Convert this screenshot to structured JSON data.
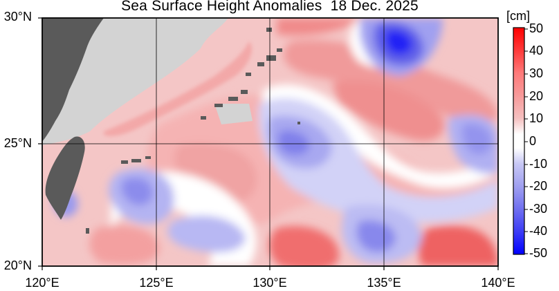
{
  "title": "Sea Surface Height Anomalies  18 Dec. 2025",
  "colorbar": {
    "unit": "[cm]",
    "ticks": [
      "50",
      "40",
      "30",
      "20",
      "10",
      "0",
      "-10",
      "-20",
      "-30",
      "-40",
      "-50"
    ],
    "max_color": "#ff0000",
    "min_color": "#0000ff",
    "zero_color": "#ffffff"
  },
  "axes": {
    "lat_labels": [
      "30°N",
      "25°N",
      "20°N"
    ],
    "lon_labels": [
      "120°E",
      "125°E",
      "130°E",
      "135°E",
      "140°E"
    ]
  },
  "colors": {
    "land": "#5a5a5a",
    "no_data": "#d3d3d3",
    "grid": "#000000"
  }
}
